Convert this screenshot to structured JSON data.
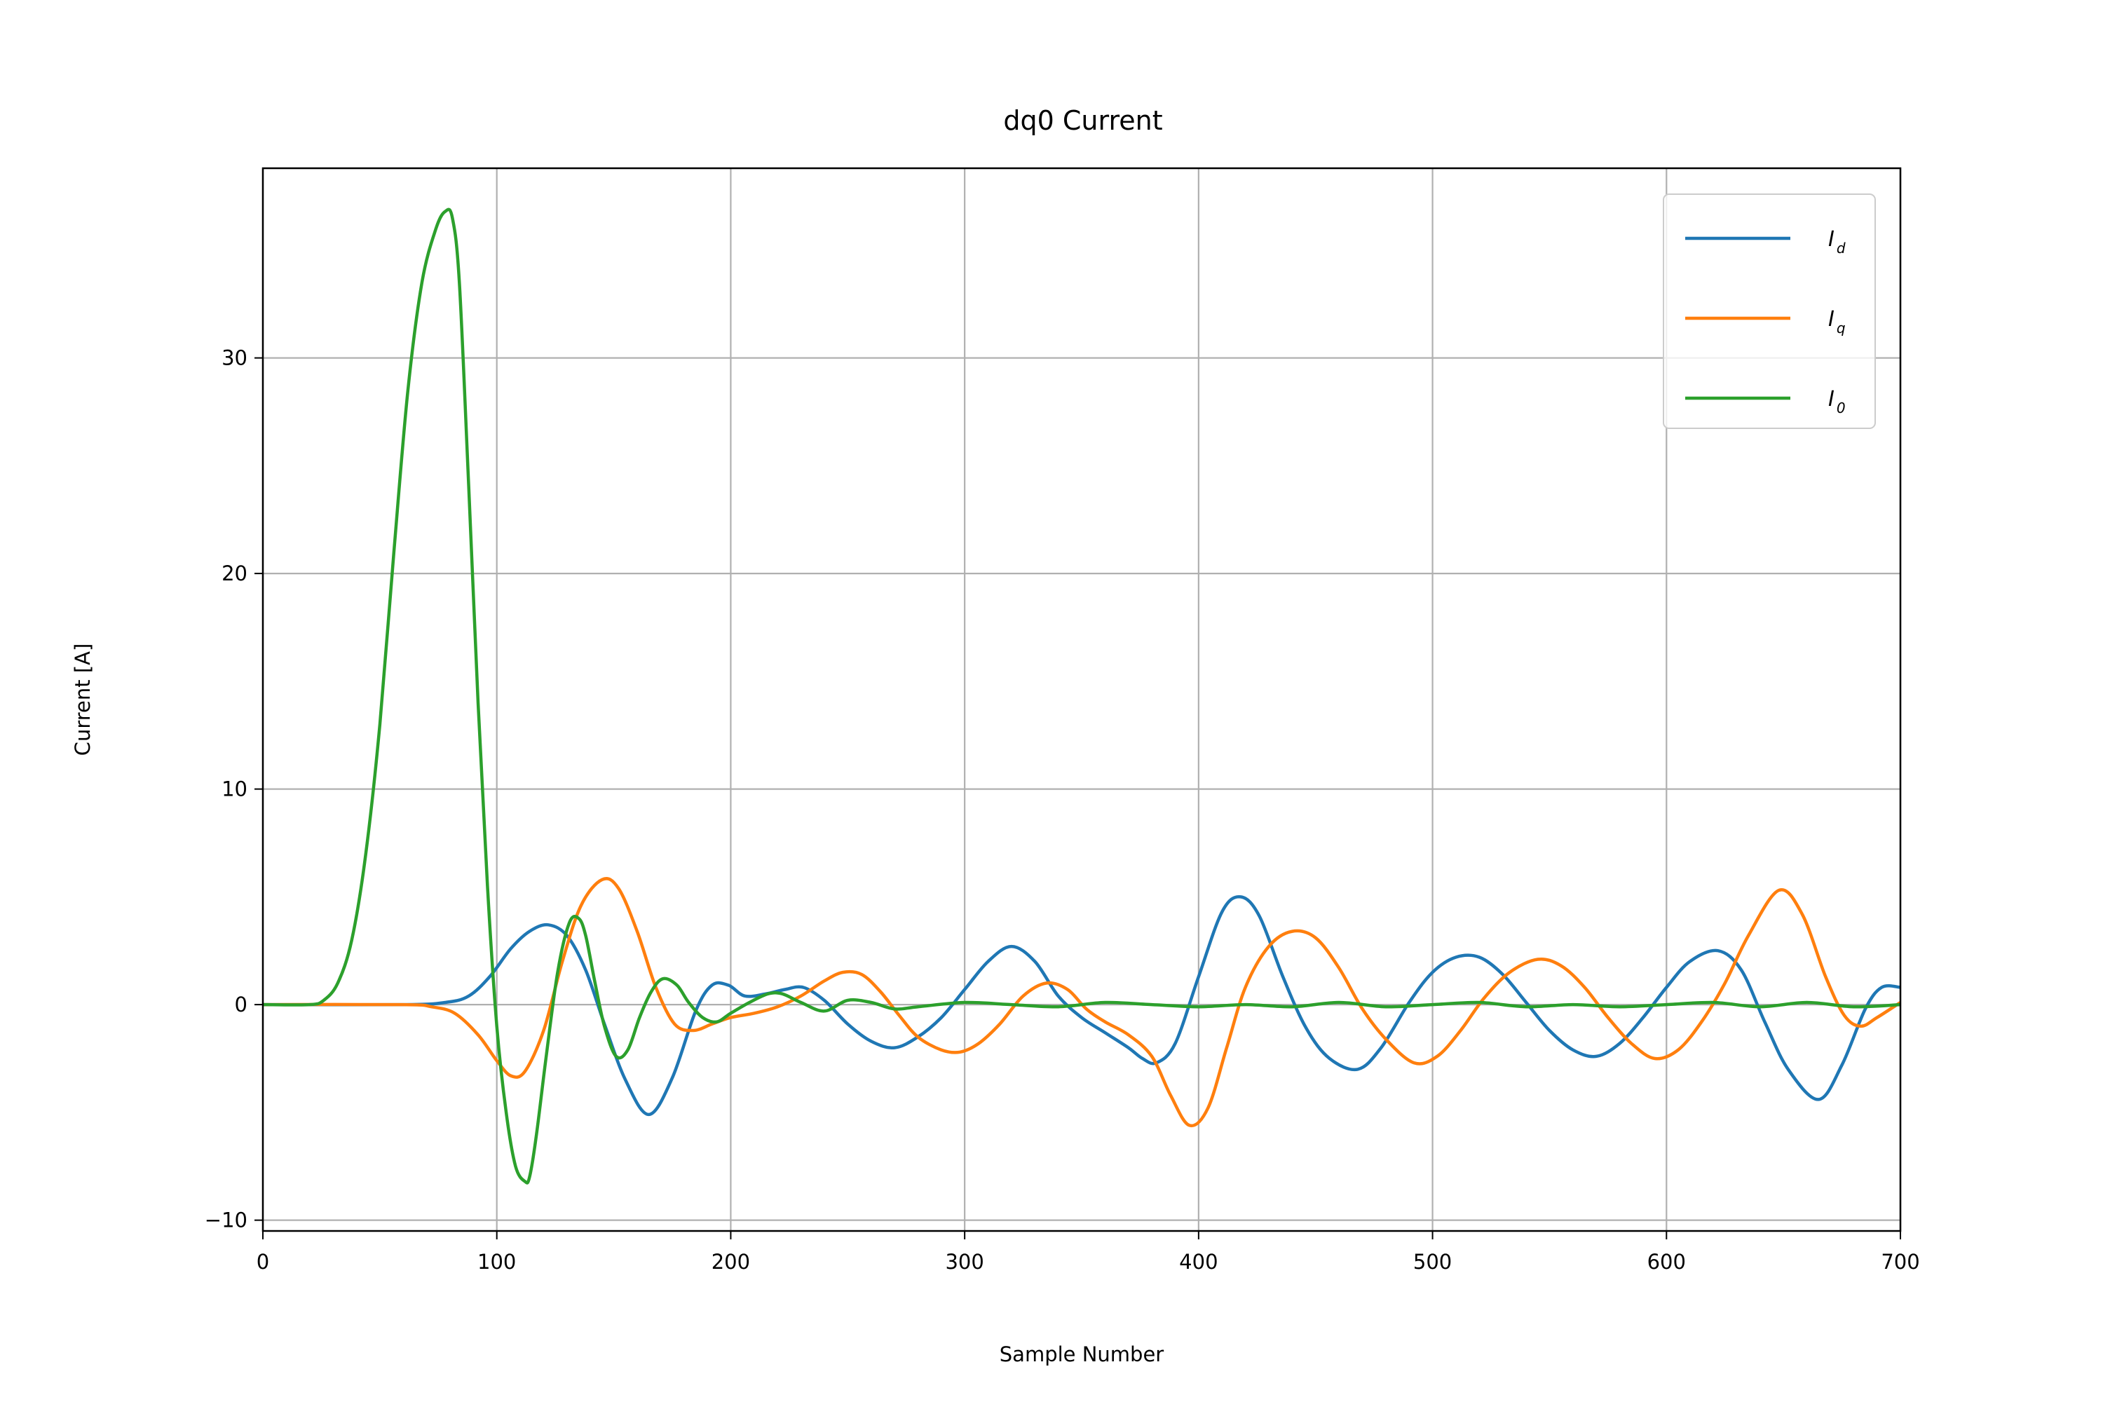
{
  "chart_data": {
    "type": "line",
    "title": "dq0 Current",
    "xlabel": "Sample Number",
    "ylabel": "Current [A]",
    "xlim": [
      0,
      700
    ],
    "ylim": [
      -10.5,
      38.8
    ],
    "xticks": [
      0,
      100,
      200,
      300,
      400,
      500,
      600,
      700
    ],
    "xtick_labels": [
      "0",
      "100",
      "200",
      "300",
      "400",
      "500",
      "600",
      "700"
    ],
    "yticks": [
      -10,
      0,
      10,
      20,
      30
    ],
    "ytick_labels": [
      "−10",
      "0",
      "10",
      "20",
      "30"
    ],
    "grid": true,
    "legend_position": "top-right",
    "series": [
      {
        "name": "I_d",
        "label_main": "I",
        "label_sub": "d",
        "color": "#1f77b4",
        "x": [
          0,
          60,
          78,
          88,
          97,
          106,
          114,
          122,
          130,
          138,
          146,
          155,
          165,
          175,
          185,
          192,
          199,
          206,
          215,
          223,
          231,
          240,
          250,
          260,
          270,
          280,
          290,
          300,
          310,
          320,
          330,
          340,
          350,
          360,
          370,
          376,
          382,
          390,
          400,
          410,
          418,
          426,
          436,
          446,
          456,
          468,
          478,
          490,
          500,
          510,
          520,
          530,
          540,
          550,
          560,
          570,
          580,
          590,
          600,
          610,
          622,
          632,
          642,
          652,
          665,
          675,
          685,
          692,
          700
        ],
        "y": [
          0,
          0,
          0.1,
          0.4,
          1.3,
          2.6,
          3.4,
          3.7,
          3.2,
          1.6,
          -0.9,
          -3.5,
          -5.1,
          -3.4,
          -0.3,
          0.9,
          0.9,
          0.4,
          0.5,
          0.7,
          0.8,
          0.2,
          -0.9,
          -1.7,
          -2.0,
          -1.5,
          -0.6,
          0.7,
          2.0,
          2.7,
          2.0,
          0.4,
          -0.6,
          -1.3,
          -2.0,
          -2.5,
          -2.7,
          -1.8,
          1.3,
          4.3,
          5.0,
          4.1,
          1.3,
          -1.1,
          -2.5,
          -3.0,
          -2.0,
          0.1,
          1.5,
          2.2,
          2.2,
          1.4,
          0.1,
          -1.2,
          -2.1,
          -2.4,
          -1.8,
          -0.6,
          0.8,
          2.0,
          2.5,
          1.6,
          -0.8,
          -3.0,
          -4.4,
          -2.8,
          -0.2,
          0.8,
          0.8
        ]
      },
      {
        "name": "I_q",
        "label_main": "I",
        "label_sub": "q",
        "color": "#ff7f0e",
        "x": [
          0,
          60,
          72,
          82,
          92,
          100,
          106,
          112,
          120,
          128,
          136,
          145,
          152,
          160,
          168,
          176,
          184,
          192,
          200,
          210,
          220,
          230,
          240,
          248,
          256,
          264,
          272,
          280,
          290,
          298,
          306,
          315,
          325,
          335,
          344,
          352,
          360,
          370,
          380,
          388,
          396,
          404,
          412,
          420,
          430,
          440,
          450,
          460,
          470,
          480,
          492,
          502,
          512,
          522,
          533,
          545,
          555,
          565,
          575,
          585,
          595,
          605,
          615,
          625,
          635,
          648,
          658,
          668,
          676,
          683,
          690,
          700
        ],
        "y": [
          0,
          0,
          -0.1,
          -0.4,
          -1.4,
          -2.6,
          -3.3,
          -3.1,
          -1.2,
          2.0,
          4.6,
          5.8,
          5.4,
          3.4,
          0.8,
          -0.9,
          -1.2,
          -0.9,
          -0.6,
          -0.4,
          -0.1,
          0.4,
          1.1,
          1.5,
          1.4,
          0.6,
          -0.5,
          -1.5,
          -2.1,
          -2.2,
          -1.8,
          -0.9,
          0.4,
          1.0,
          0.7,
          -0.2,
          -0.8,
          -1.4,
          -2.4,
          -4.2,
          -5.6,
          -4.8,
          -2.0,
          0.8,
          2.7,
          3.4,
          3.1,
          1.7,
          -0.2,
          -1.6,
          -2.7,
          -2.4,
          -1.2,
          0.3,
          1.5,
          2.1,
          1.8,
          0.8,
          -0.6,
          -1.8,
          -2.5,
          -2.1,
          -0.8,
          1.0,
          3.2,
          5.3,
          4.2,
          1.3,
          -0.5,
          -1.0,
          -0.6,
          0.1
        ]
      },
      {
        "name": "I_0",
        "label_main": "I",
        "label_sub": "0",
        "color": "#2ca02c",
        "x": [
          0,
          20,
          26,
          32,
          38,
          44,
          50,
          56,
          62,
          68,
          74,
          78,
          81,
          84,
          88,
          92,
          96,
          100,
          104,
          108,
          112,
          114,
          117,
          121,
          126,
          131,
          135,
          138,
          142,
          146,
          151,
          156,
          161,
          166,
          171,
          177,
          182,
          188,
          194,
          200,
          208,
          216,
          222,
          230,
          240,
          250,
          260,
          270,
          280,
          300,
          320,
          340,
          360,
          380,
          400,
          420,
          440,
          460,
          480,
          500,
          520,
          540,
          560,
          580,
          600,
          620,
          640,
          660,
          680,
          700
        ],
        "y": [
          0,
          0,
          0.2,
          1.0,
          3.0,
          7.0,
          13.0,
          21.0,
          28.5,
          33.5,
          36.0,
          36.8,
          36.5,
          33.5,
          24.0,
          14.0,
          5.5,
          -1.0,
          -5.0,
          -7.5,
          -8.2,
          -8.0,
          -6.0,
          -2.5,
          1.5,
          3.8,
          4.0,
          3.2,
          1.0,
          -1.0,
          -2.4,
          -2.1,
          -0.6,
          0.6,
          1.2,
          0.9,
          0.1,
          -0.6,
          -0.8,
          -0.4,
          0.1,
          0.5,
          0.5,
          0.1,
          -0.3,
          0.2,
          0.1,
          -0.2,
          -0.1,
          0.1,
          0.0,
          -0.1,
          0.1,
          0.0,
          -0.1,
          0.0,
          -0.1,
          0.1,
          -0.1,
          0.0,
          0.1,
          -0.1,
          0.0,
          -0.1,
          0.0,
          0.1,
          -0.1,
          0.1,
          -0.1,
          0.0
        ]
      }
    ]
  }
}
